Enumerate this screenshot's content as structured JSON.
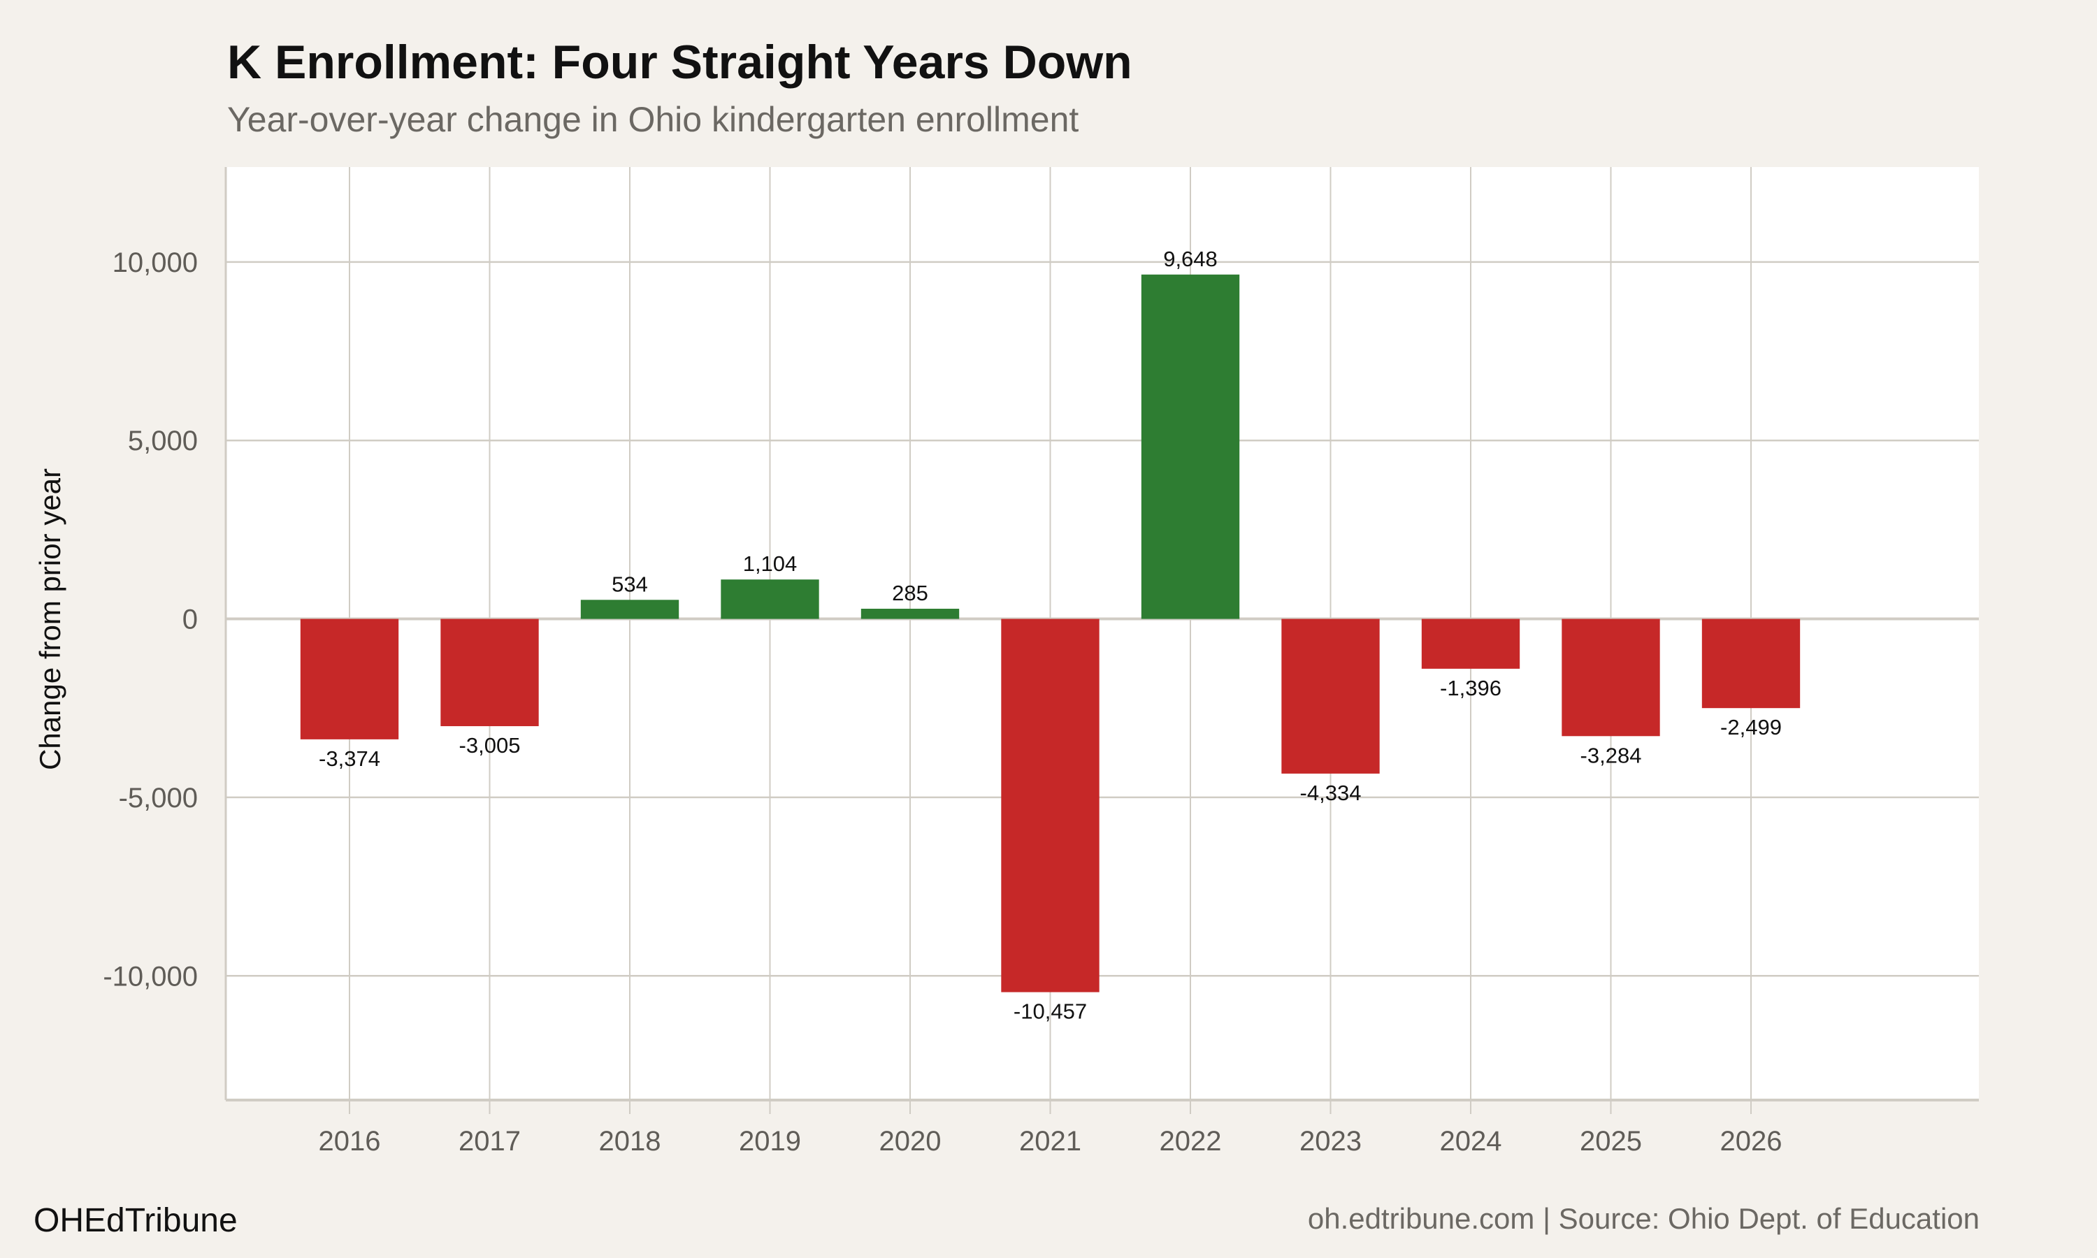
{
  "chart_data": {
    "type": "bar",
    "title": "K Enrollment: Four Straight Years Down",
    "subtitle": "Year-over-year change in Ohio kindergarten enrollment",
    "xlabel": "",
    "ylabel": "Change from prior year",
    "categories": [
      "2016",
      "2017",
      "2018",
      "2019",
      "2020",
      "2021",
      "2022",
      "2023",
      "2024",
      "2025",
      "2026"
    ],
    "values": [
      -3374,
      -3005,
      534,
      1104,
      285,
      -10457,
      9648,
      -4334,
      -1396,
      -3284,
      -2499
    ],
    "data_labels": [
      "-3,374",
      "-3,005",
      "534",
      "1,104",
      "285",
      "-10,457",
      "9,648",
      "-4,334",
      "-1,396",
      "-3,284",
      "-2,499"
    ],
    "ylim": [
      -13480,
      12660
    ],
    "yticks": [
      -10000,
      -5000,
      0,
      5000,
      10000
    ],
    "ytick_labels": [
      "-10,000",
      "-5,000",
      "0",
      "5,000",
      "10,000"
    ],
    "grid": true,
    "colors": {
      "positive": "#2e7d32",
      "negative": "#c62828",
      "grid": "#d0ccc4",
      "panel": "#ffffff",
      "background": "#f4f1ec"
    }
  },
  "footer": {
    "brand": "OHEdTribune",
    "source": "oh.edtribune.com | Source: Ohio Dept. of Education"
  }
}
